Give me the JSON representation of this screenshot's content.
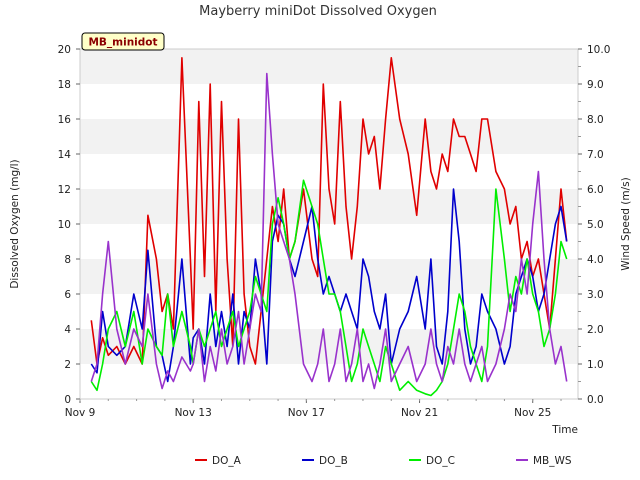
{
  "chart_data": {
    "type": "line",
    "title": "Mayberry miniDot Dissolved Oxygen",
    "badge": "MB_minidot",
    "xlabel": "Time",
    "ylabel": "Dissolved Oxygen (mg/l)",
    "y2label": "Wind Speed (m/s)",
    "xlim": [
      9,
      26.6
    ],
    "ylim": [
      0,
      20
    ],
    "y2lim": [
      0,
      10
    ],
    "x_ticks": [
      {
        "value": 9,
        "label": "Nov 9"
      },
      {
        "value": 13,
        "label": "Nov 13"
      },
      {
        "value": 17,
        "label": "Nov 17"
      },
      {
        "value": 21,
        "label": "Nov 21"
      },
      {
        "value": 25,
        "label": "Nov 25"
      }
    ],
    "y_ticks": [
      0,
      2,
      4,
      6,
      8,
      10,
      12,
      14,
      16,
      18,
      20
    ],
    "y2_ticks": [
      "0.0",
      "1.0",
      "2.0",
      "3.0",
      "4.0",
      "5.0",
      "6.0",
      "7.0",
      "8.0",
      "9.0",
      "10.0"
    ],
    "grid": "horizontal bands",
    "legend_position": "bottom",
    "series": [
      {
        "name": "DO_A",
        "axis": "left",
        "color": "#e00000",
        "x": [
          9.4,
          9.6,
          9.8,
          10.0,
          10.3,
          10.6,
          10.9,
          11.2,
          11.4,
          11.7,
          11.9,
          12.1,
          12.3,
          12.6,
          12.9,
          13.0,
          13.2,
          13.4,
          13.6,
          13.8,
          14.0,
          14.2,
          14.4,
          14.6,
          14.8,
          15.0,
          15.2,
          15.4,
          15.6,
          15.8,
          16.0,
          16.2,
          16.4,
          16.6,
          16.9,
          17.2,
          17.4,
          17.6,
          17.8,
          18.0,
          18.2,
          18.4,
          18.6,
          18.8,
          19.0,
          19.2,
          19.4,
          19.6,
          19.8,
          20.0,
          20.3,
          20.6,
          20.9,
          21.2,
          21.4,
          21.6,
          21.8,
          22.0,
          22.2,
          22.4,
          22.6,
          22.8,
          23.0,
          23.2,
          23.4,
          23.7,
          24.0,
          24.2,
          24.4,
          24.6,
          24.8,
          25.0,
          25.2,
          25.4,
          25.6,
          25.8,
          26.0,
          26.2
        ],
        "values": [
          4.5,
          2,
          3.5,
          2.5,
          3,
          2,
          3,
          2,
          10.5,
          8,
          5,
          6,
          4,
          19.5,
          8,
          4,
          17,
          7,
          18,
          5,
          17,
          8,
          3,
          16,
          6,
          3,
          2,
          5,
          8,
          11,
          9,
          12,
          8,
          9,
          12,
          8,
          7,
          18,
          12,
          10,
          17,
          11,
          8,
          11,
          16,
          14,
          15,
          12,
          16,
          19.5,
          16,
          14,
          10.5,
          16,
          13,
          12,
          14,
          13,
          16,
          15,
          15,
          14,
          13,
          16,
          16,
          13,
          12,
          10,
          11,
          8,
          9,
          7,
          8,
          6,
          4,
          8,
          12,
          9
        ]
      },
      {
        "name": "DO_B",
        "axis": "left",
        "color": "#0000cc",
        "x": [
          9.4,
          9.6,
          9.8,
          10.0,
          10.3,
          10.6,
          10.9,
          11.2,
          11.4,
          11.7,
          11.9,
          12.1,
          12.3,
          12.6,
          12.9,
          13.0,
          13.2,
          13.4,
          13.6,
          13.8,
          14.0,
          14.2,
          14.4,
          14.6,
          14.8,
          15.0,
          15.2,
          15.4,
          15.6,
          15.8,
          16.0,
          16.2,
          16.4,
          16.6,
          16.9,
          17.2,
          17.4,
          17.6,
          17.8,
          18.0,
          18.2,
          18.4,
          18.6,
          18.8,
          19.0,
          19.2,
          19.4,
          19.6,
          19.8,
          20.0,
          20.3,
          20.6,
          20.9,
          21.2,
          21.4,
          21.6,
          21.8,
          22.0,
          22.2,
          22.4,
          22.6,
          22.8,
          23.0,
          23.2,
          23.4,
          23.7,
          24.0,
          24.2,
          24.4,
          24.6,
          24.8,
          25.0,
          25.2,
          25.4,
          25.6,
          25.8,
          26.0,
          26.2
        ],
        "values": [
          2,
          1.5,
          5,
          3,
          2.5,
          3,
          6,
          4,
          8.5,
          3,
          2.5,
          1,
          3,
          8,
          2,
          3.5,
          4,
          2,
          6,
          3,
          5,
          3,
          6,
          2,
          5,
          4,
          8,
          6,
          2,
          9,
          10.5,
          10,
          8,
          7,
          9,
          11,
          8,
          6,
          7,
          6,
          5,
          6,
          5,
          4,
          8,
          7,
          5,
          4,
          6,
          2,
          4,
          5,
          7,
          4,
          8,
          3,
          2,
          5,
          12,
          9,
          4,
          2,
          3,
          6,
          5,
          4,
          2,
          3,
          6,
          7,
          8,
          7,
          5,
          6,
          8,
          10,
          11,
          9
        ]
      },
      {
        "name": "DO_C",
        "axis": "left",
        "color": "#00ee00",
        "x": [
          9.4,
          9.6,
          9.8,
          10.0,
          10.3,
          10.6,
          10.9,
          11.2,
          11.4,
          11.7,
          11.9,
          12.1,
          12.3,
          12.6,
          12.9,
          13.0,
          13.2,
          13.4,
          13.6,
          13.8,
          14.0,
          14.2,
          14.4,
          14.6,
          14.8,
          15.0,
          15.2,
          15.4,
          15.6,
          15.8,
          16.0,
          16.2,
          16.4,
          16.6,
          16.9,
          17.2,
          17.4,
          17.6,
          17.8,
          18.0,
          18.2,
          18.4,
          18.6,
          18.8,
          19.0,
          19.2,
          19.4,
          19.6,
          19.8,
          20.0,
          20.3,
          20.6,
          20.9,
          21.2,
          21.4,
          21.6,
          21.8,
          22.0,
          22.2,
          22.4,
          22.6,
          22.8,
          23.0,
          23.2,
          23.4,
          23.7,
          24.0,
          24.2,
          24.4,
          24.6,
          24.8,
          25.0,
          25.2,
          25.4,
          25.6,
          25.8,
          26.0,
          26.2
        ],
        "values": [
          1,
          0.5,
          2,
          4,
          5,
          3,
          5,
          2,
          4,
          3,
          2.5,
          6,
          3,
          5,
          3,
          2,
          4,
          3,
          4,
          5,
          3,
          4,
          5,
          3,
          4,
          5,
          7,
          6,
          5,
          10,
          11.5,
          10,
          8,
          9,
          12.5,
          11,
          10,
          8,
          6,
          6,
          5,
          3,
          1,
          2,
          4,
          3,
          2,
          1,
          3,
          2,
          0.5,
          1,
          0.5,
          0.3,
          0.2,
          0.5,
          1,
          2,
          4,
          6,
          5,
          3,
          2,
          1,
          3,
          12,
          8,
          5,
          7,
          6,
          8,
          6,
          5,
          3,
          4,
          6,
          9,
          8
        ]
      },
      {
        "name": "MB_WS",
        "axis": "right",
        "color": "#9933cc",
        "x": [
          9.4,
          9.6,
          9.8,
          10.0,
          10.3,
          10.6,
          10.9,
          11.2,
          11.4,
          11.7,
          11.9,
          12.1,
          12.3,
          12.6,
          12.9,
          13.0,
          13.2,
          13.4,
          13.6,
          13.8,
          14.0,
          14.2,
          14.4,
          14.6,
          14.8,
          15.0,
          15.2,
          15.4,
          15.6,
          15.8,
          16.0,
          16.2,
          16.4,
          16.6,
          16.9,
          17.2,
          17.4,
          17.6,
          17.8,
          18.0,
          18.2,
          18.4,
          18.6,
          18.8,
          19.0,
          19.2,
          19.4,
          19.6,
          19.8,
          20.0,
          20.3,
          20.6,
          20.9,
          21.2,
          21.4,
          21.6,
          21.8,
          22.0,
          22.2,
          22.4,
          22.6,
          22.8,
          23.0,
          23.2,
          23.4,
          23.7,
          24.0,
          24.2,
          24.4,
          24.6,
          24.8,
          25.0,
          25.2,
          25.4,
          25.6,
          25.8,
          26.0,
          26.2
        ],
        "values": [
          0.5,
          1,
          3,
          4.5,
          2,
          1,
          2,
          1.5,
          3,
          1,
          0.3,
          0.8,
          0.5,
          1.2,
          0.8,
          1,
          2,
          0.5,
          1.5,
          0.8,
          2,
          1,
          1.5,
          2.5,
          1,
          2,
          3,
          2.5,
          9.3,
          7,
          5,
          4.5,
          4,
          3,
          1,
          0.5,
          1,
          2,
          0.5,
          1,
          2,
          0.5,
          1,
          2,
          0.5,
          1,
          0.3,
          1,
          2,
          0.5,
          1,
          1.5,
          0.5,
          1,
          2,
          1,
          0.5,
          1.5,
          1,
          2,
          1,
          0.5,
          1,
          1.5,
          0.5,
          1,
          2,
          3,
          2.5,
          4,
          3,
          5,
          6.5,
          4,
          2,
          1,
          1.5,
          0.5
        ]
      }
    ]
  }
}
